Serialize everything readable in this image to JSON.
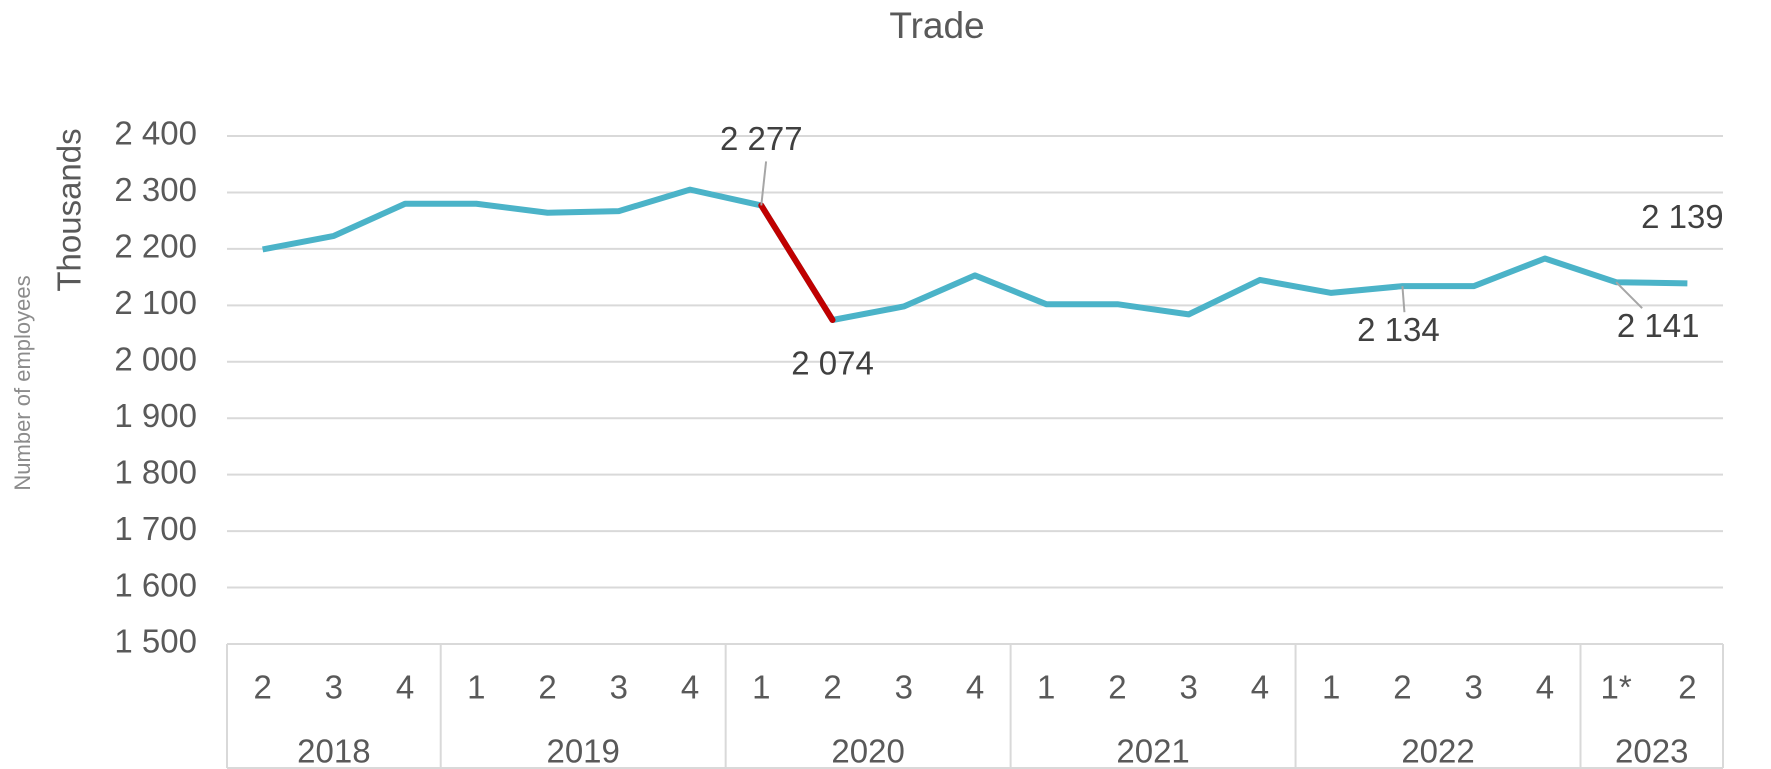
{
  "chart_data": {
    "type": "line",
    "title": "Trade",
    "y_label": "Thousands",
    "y_label_outer": "Number of employees",
    "categories": [
      "2",
      "3",
      "4",
      "1",
      "2",
      "3",
      "4",
      "1",
      "2",
      "3",
      "4",
      "1",
      "2",
      "3",
      "4",
      "1",
      "2",
      "3",
      "4",
      "1*",
      "2"
    ],
    "year_groups": [
      {
        "label": "2018",
        "size": 3
      },
      {
        "label": "2019",
        "size": 4
      },
      {
        "label": "2020",
        "size": 4
      },
      {
        "label": "2021",
        "size": 4
      },
      {
        "label": "2022",
        "size": 4
      },
      {
        "label": "2023",
        "size": 2
      }
    ],
    "series": [
      {
        "color": "#4bb3c8",
        "values": [
          2199,
          2223,
          2280,
          2280,
          2264,
          2267,
          2305,
          2277,
          2074,
          2098,
          2153,
          2102,
          2102,
          2084,
          2145,
          2122,
          2134,
          2134,
          2183,
          2141,
          2139
        ],
        "value_labels": [
          null,
          null,
          null,
          null,
          null,
          null,
          null,
          "2 277",
          "2 074",
          null,
          null,
          null,
          null,
          null,
          null,
          null,
          "2 134",
          null,
          null,
          "2 141",
          "2 139"
        ]
      }
    ],
    "highlight": {
      "from": 7,
      "to": 8,
      "color": "#c00000"
    },
    "ylim": [
      1500,
      2400
    ],
    "yticks": [
      {
        "value": 1500,
        "label": "1 500"
      },
      {
        "value": 1600,
        "label": "1 600"
      },
      {
        "value": 1700,
        "label": "1 700"
      },
      {
        "value": 1800,
        "label": "1 800"
      },
      {
        "value": 1900,
        "label": "1 900"
      },
      {
        "value": 2000,
        "label": "2 000"
      },
      {
        "value": 2100,
        "label": "2 100"
      },
      {
        "value": 2200,
        "label": "2 200"
      },
      {
        "value": 2300,
        "label": "2 300"
      },
      {
        "value": 2400,
        "label": "2 400"
      }
    ],
    "grid": true
  }
}
